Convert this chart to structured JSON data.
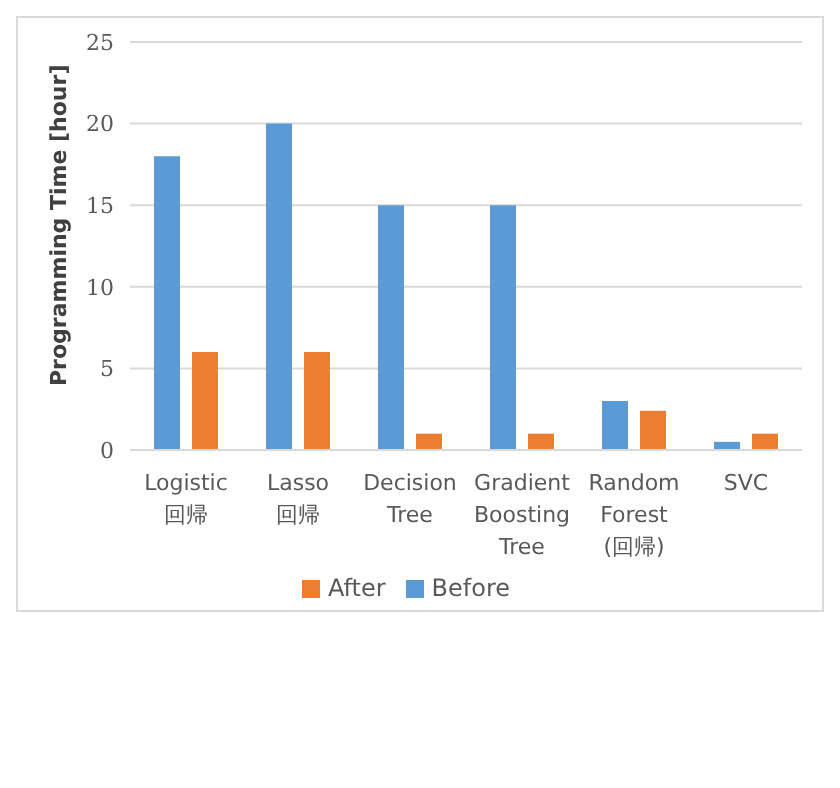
{
  "chart_data": {
    "type": "bar",
    "ylabel": "Programming Time [hour]",
    "categories": [
      "Logistic\n回帰",
      "Lasso\n回帰",
      "Decision\nTree",
      "Gradient\nBoosting\nTree",
      "Random\nForest\n(回帰)",
      "SVC"
    ],
    "series": [
      {
        "name": "Before",
        "color": "#5b9bd5",
        "values": [
          18,
          20,
          15,
          15,
          3,
          0.5
        ]
      },
      {
        "name": "After",
        "color": "#ed7d31",
        "values": [
          6,
          6,
          1,
          1,
          2.4,
          1
        ]
      }
    ],
    "ylim": [
      0,
      25
    ],
    "yticks": [
      0,
      5,
      10,
      15,
      20,
      25
    ],
    "grid": "y",
    "legend": "bottom"
  }
}
